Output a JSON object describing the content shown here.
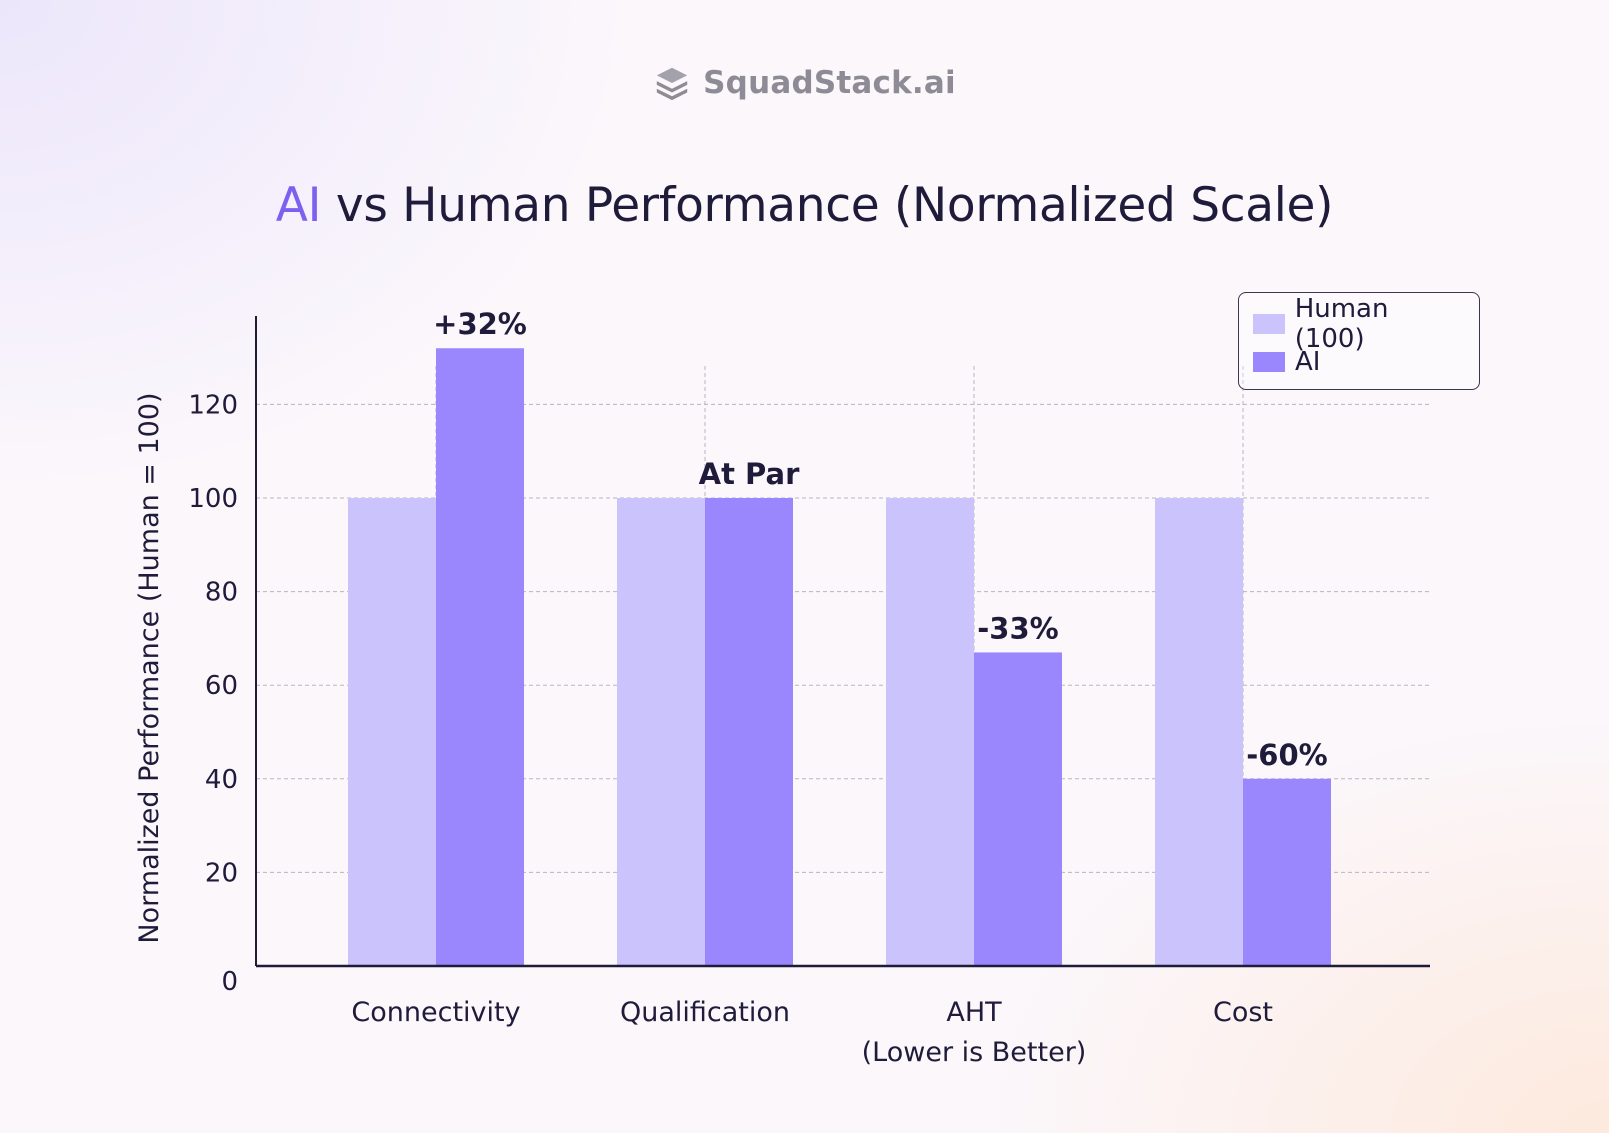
{
  "brand": {
    "name": "SquadStack.ai",
    "icon": "stack-layers-icon"
  },
  "title": {
    "accent": "AI",
    "rest": " vs Human Performance (Normalized Scale)"
  },
  "colors": {
    "human": "#cbc3fb",
    "ai": "#9a87fd",
    "accent": "#7b61f0",
    "text": "#1f1b3a",
    "grid": "#b9b4c6"
  },
  "legend": [
    {
      "label": "Human (100)",
      "series": "human"
    },
    {
      "label": "AI",
      "series": "ai"
    }
  ],
  "chart_data": {
    "type": "bar",
    "title": "AI vs Human Performance (Normalized Scale)",
    "xlabel": "",
    "ylabel": "Normalized Performance (Human = 100)",
    "ylim": [
      0,
      140
    ],
    "yticks": [
      0,
      20,
      40,
      60,
      80,
      100,
      120
    ],
    "grid": true,
    "legend_position": "top-right",
    "categories": [
      [
        "Connectivity"
      ],
      [
        "Qualification"
      ],
      [
        "AHT",
        "(Lower is Better)"
      ],
      [
        "Cost"
      ]
    ],
    "series": [
      {
        "name": "Human (100)",
        "key": "human",
        "values": [
          100,
          100,
          100,
          100
        ]
      },
      {
        "name": "AI",
        "key": "ai",
        "values": [
          132,
          100,
          67,
          40
        ]
      }
    ],
    "annotations": [
      "+32%",
      "At Par",
      "-33%",
      "-60%"
    ]
  }
}
